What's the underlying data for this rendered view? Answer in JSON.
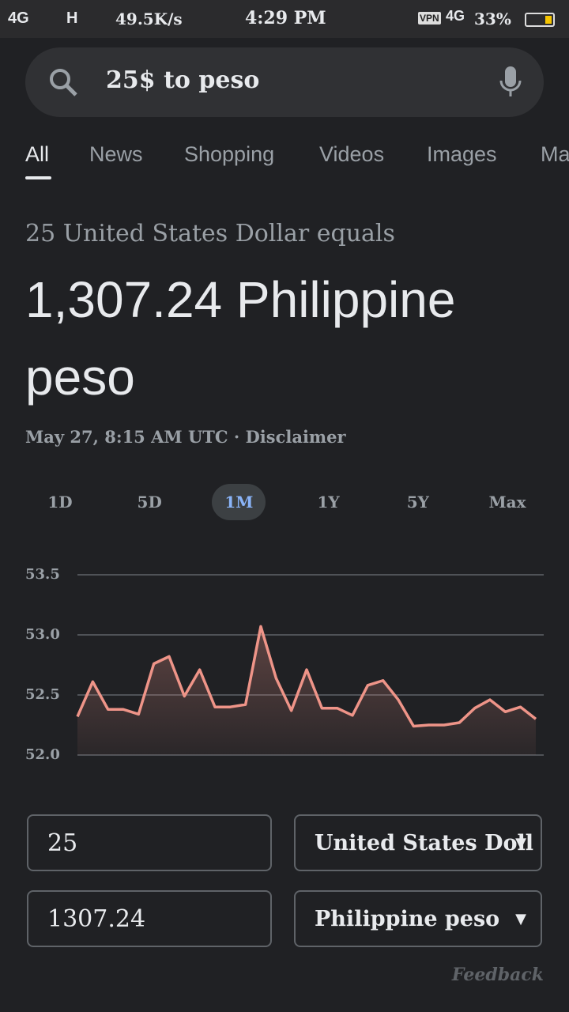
{
  "status": {
    "net1": "4G",
    "net2": "H",
    "speed": "49.5K/s",
    "time": "4:29 PM",
    "vpn": "VPN",
    "net3": "4G",
    "battery": "33%"
  },
  "search": {
    "query": "25$ to peso"
  },
  "tabs": [
    "All",
    "News",
    "Shopping",
    "Videos",
    "Images",
    "Ma"
  ],
  "result": {
    "subtitle": "25 United States Dollar equals",
    "value": "1,307.24 Philippine peso",
    "date": "May 27, 8:15 AM UTC",
    "disclaimer": "Disclaimer"
  },
  "ranges": [
    "1D",
    "5D",
    "1M",
    "1Y",
    "5Y",
    "Max"
  ],
  "selected_range": "1M",
  "chart_data": {
    "type": "line",
    "color": "#ee9488",
    "values": [
      52.32,
      52.61,
      52.38,
      52.38,
      52.34,
      52.76,
      52.82,
      52.49,
      52.71,
      52.4,
      52.4,
      52.42,
      53.07,
      52.64,
      52.37,
      52.71,
      52.39,
      52.39,
      52.33,
      52.58,
      52.62,
      52.46,
      52.24,
      52.25,
      52.25,
      52.27,
      52.39,
      52.46,
      52.36,
      52.4,
      52.3
    ],
    "ylim": [
      52,
      53.5
    ],
    "yticks": [
      53.5,
      {
        "value": 53,
        "label": "53.0"
      },
      52.5,
      {
        "value": 52,
        "label": "52.0"
      }
    ],
    "grid": true
  },
  "converter": {
    "from_amount": "25",
    "from_currency": "United States Doll",
    "to_amount": "1307.24",
    "to_currency": "Philippine peso"
  },
  "feedback": "Feedback"
}
